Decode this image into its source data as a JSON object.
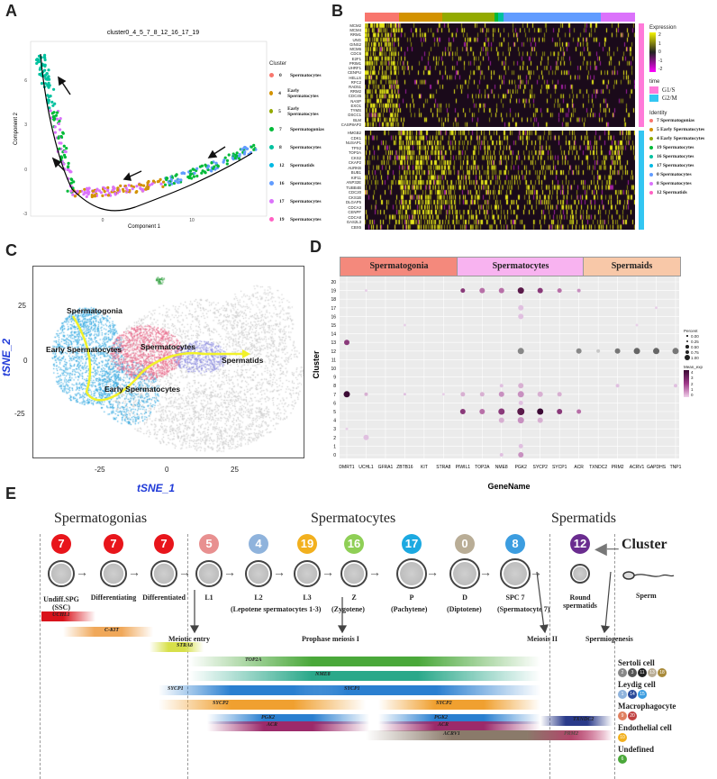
{
  "panel_letters": {
    "a": "A",
    "b": "B",
    "c": "C",
    "d": "D",
    "e": "E"
  },
  "panel_a": {
    "title": "cluster0_4_5_7_8_12_16_17_19",
    "xlabel": "Component 1",
    "ylabel": "Component 2",
    "xticks": [
      "0",
      "10"
    ],
    "yticks": [
      "6",
      "3",
      "0",
      "-3"
    ],
    "legend_title": "Cluster",
    "legend": [
      {
        "id": "0",
        "name": "Spermatocytes",
        "color": "#f8766d"
      },
      {
        "id": "4",
        "name": "Early Spermatocytes",
        "color": "#d39200"
      },
      {
        "id": "5",
        "name": "Early Spermatocytes",
        "color": "#93aa00"
      },
      {
        "id": "7",
        "name": "Spermatogonias",
        "color": "#00ba38"
      },
      {
        "id": "8",
        "name": "Spermatocytes",
        "color": "#00c19f"
      },
      {
        "id": "12",
        "name": "Spermatids",
        "color": "#00b9e3"
      },
      {
        "id": "16",
        "name": "Spermatocytes",
        "color": "#619cff"
      },
      {
        "id": "17",
        "name": "Spermatocytes",
        "color": "#db72fb"
      },
      {
        "id": "19",
        "name": "Spermatocytes",
        "color": "#ff61c3"
      }
    ]
  },
  "panel_b": {
    "genes_top": [
      "MCM2",
      "MCM4",
      "RRM1",
      "UNG",
      "GINS2",
      "MCM6",
      "CDC6",
      "E2F1",
      "PRIM1",
      "UHRF1",
      "CENPU",
      "HELLS",
      "RFC2",
      "RAD51",
      "RRM2",
      "CDC45",
      "NASP",
      "EXO1",
      "TYMS",
      "DSCC1",
      "BLM",
      "CASP8AP2"
    ],
    "genes_bottom": [
      "HMGB2",
      "CDK1",
      "NUSAP1",
      "TPX2",
      "TOP2A",
      "CKS2",
      "CKAP2",
      "AURKB",
      "BUB1",
      "KIF11",
      "ANP32E",
      "TUBB4B",
      "CDC20",
      "CKS1B",
      "DLGAP5",
      "CDCA3",
      "CENPF",
      "CDCA8",
      "GAS2L3",
      "CBX5"
    ],
    "expression_title": "Expression",
    "expression_ticks": [
      "2",
      "1",
      "0",
      "-1",
      "-2"
    ],
    "time_title": "time",
    "time_items": [
      {
        "name": "G1/S",
        "color": "#ff7ad9"
      },
      {
        "name": "G2/M",
        "color": "#33c6f2"
      }
    ],
    "identity_title": "Identity",
    "identity": [
      {
        "name": "7  Spermatogonias",
        "color": "#f8766d"
      },
      {
        "name": "5  Early Spermatocytes",
        "color": "#d39200"
      },
      {
        "name": "4  Early Spermatocytes",
        "color": "#93aa00"
      },
      {
        "name": "19 Spermatocytes",
        "color": "#00ba38"
      },
      {
        "name": "16 Spermatocytes",
        "color": "#00c19f"
      },
      {
        "name": "17 Spermatocytes",
        "color": "#00b9e3"
      },
      {
        "name": "0  Spermatocytes",
        "color": "#619cff"
      },
      {
        "name": "8  Spermatocytes",
        "color": "#db72fb"
      },
      {
        "name": "12 Spermatids",
        "color": "#ff61c3"
      }
    ]
  },
  "panel_c": {
    "xlabel": "tSNE_1",
    "ylabel": "tSNE_2",
    "xticks": [
      "-25",
      "0",
      "25"
    ],
    "yticks": [
      "25",
      "0",
      "-25"
    ],
    "labels": {
      "spermatogonia": "Spermatogonia",
      "early1": "Early Spermatocytes",
      "spermatocytes": "Spermatocytes",
      "spermatids": "Spermatids",
      "early2": "Early Spermatocytes"
    }
  },
  "panel_d": {
    "groups": [
      {
        "name": "Spermatogonia",
        "color": "#f4897c"
      },
      {
        "name": "Spermatocytes",
        "color": "#f8b3f0"
      },
      {
        "name": "Spermaids",
        "color": "#f8c8a8"
      }
    ],
    "ylabel": "Cluster",
    "xlabel": "GeneName",
    "clusters": [
      "20",
      "19",
      "18",
      "17",
      "16",
      "15",
      "14",
      "13",
      "12",
      "11",
      "10",
      "9",
      "8",
      "7",
      "6",
      "5",
      "4",
      "3",
      "2",
      "1",
      "0"
    ],
    "genes": [
      "DMRT1",
      "UCHL1",
      "GFRA1",
      "ZBTB16",
      "KIT",
      "STRA8",
      "PIWIL1",
      "TOP2A",
      "NME8",
      "PGK2",
      "SYCP2",
      "SYCP1",
      "ACR",
      "TXNDC2",
      "PRM2",
      "ACRV1",
      "GAPDHS",
      "TNP1"
    ],
    "percent_title": "Percent",
    "percent_ticks": [
      "0.00",
      "0.25",
      "0.50",
      "0.75",
      "1.00"
    ],
    "avg_title": "Mean_exp",
    "avg_ticks": [
      "4",
      "3",
      "2",
      "1",
      "0"
    ]
  },
  "panel_e": {
    "headers": {
      "spermatogonias": "Spermatogonias",
      "spermatocytes": "Spermatocytes",
      "spermatids": "Spermatids"
    },
    "cluster_label": "Cluster",
    "stages": [
      {
        "num": "7",
        "color": "#e8151b",
        "name": "Undiff.SPG\n(SSC)"
      },
      {
        "num": "7",
        "color": "#e8151b",
        "name": "Differentiating"
      },
      {
        "num": "7",
        "color": "#e8151b",
        "name": "Differentiated"
      },
      {
        "num": "5",
        "color": "#e89090",
        "name": "L1"
      },
      {
        "num": "4",
        "color": "#8fb3dc",
        "name": "L2"
      },
      {
        "num": "19",
        "color": "#f2b01e",
        "name": "L3"
      },
      {
        "num": "16",
        "color": "#8fcf56",
        "name": "Z"
      },
      {
        "num": "17",
        "color": "#1ca9e1",
        "name": "P"
      },
      {
        "num": "0",
        "color": "#b9ad96",
        "name": "D"
      },
      {
        "num": "8",
        "color": "#3c9de0",
        "name": "SPC 7"
      },
      {
        "num": "12",
        "color": "#6a2c8f",
        "name": "Round\nspermatids"
      }
    ],
    "sub_labels": {
      "leptotene": "(Lepotene spermatocytes 1-3)",
      "zygotene": "(Zygotene)",
      "pachytene": "(Pachytene)",
      "diplotene": "(Diptotene)",
      "spc7": "(Spermatocyte 7)",
      "sperm": "Sperm",
      "meiotic_entry": "Meiotic entry",
      "prophase": "Prophase meiosis I",
      "meiosis2": "Meiosis II",
      "spermiogenesis": "Spermiogenesis"
    },
    "genes": [
      {
        "name": "UCHL1",
        "color": "#d9121b"
      },
      {
        "name": "C-KIT",
        "color": "#f0a85a"
      },
      {
        "name": "STRA8",
        "color": "#d7e04a"
      },
      {
        "name": "TOP2A",
        "color": "#4aa83a"
      },
      {
        "name": "NME8",
        "color": "#2aa88a"
      },
      {
        "name": "SYCP1",
        "color": "#2a7fd0"
      },
      {
        "name": "SYCP1",
        "color": "#2a7fd0"
      },
      {
        "name": "SYCP2",
        "color": "#f0a030"
      },
      {
        "name": "SYCP2",
        "color": "#f0a030"
      },
      {
        "name": "PGK2",
        "color": "#2a7fd0"
      },
      {
        "name": "PGK2",
        "color": "#2a7fd0"
      },
      {
        "name": "ACR",
        "color": "#9c2a6a"
      },
      {
        "name": "ACR",
        "color": "#9c2a6a"
      },
      {
        "name": "TXNDC2",
        "color": "#2a3a8a"
      },
      {
        "name": "PRM2",
        "color": "#d6146a"
      },
      {
        "name": "ACRV1",
        "color": "#8a7a6a"
      }
    ],
    "side_groups": [
      {
        "name": "Sertoli cell",
        "badges": [
          {
            "n": "2",
            "c": "#888"
          },
          {
            "n": "3",
            "c": "#555"
          },
          {
            "n": "11",
            "c": "#222"
          },
          {
            "n": "13",
            "c": "#b9ad96"
          },
          {
            "n": "18",
            "c": "#a88a3a"
          }
        ]
      },
      {
        "name": "Leydig cell",
        "badges": [
          {
            "n": "1",
            "c": "#8fb3dc"
          },
          {
            "n": "14",
            "c": "#2a4a9a"
          },
          {
            "n": "15",
            "c": "#3c9de0"
          }
        ]
      },
      {
        "name": "Macrophagocyte",
        "badges": [
          {
            "n": "9",
            "c": "#e08060"
          },
          {
            "n": "20",
            "c": "#c04040"
          }
        ]
      },
      {
        "name": "Endothelial cell",
        "badges": [
          {
            "n": "10",
            "c": "#f2b01e"
          }
        ]
      },
      {
        "name": "Undefined",
        "badges": [
          {
            "n": "6",
            "c": "#4aa83a"
          }
        ]
      }
    ]
  }
}
